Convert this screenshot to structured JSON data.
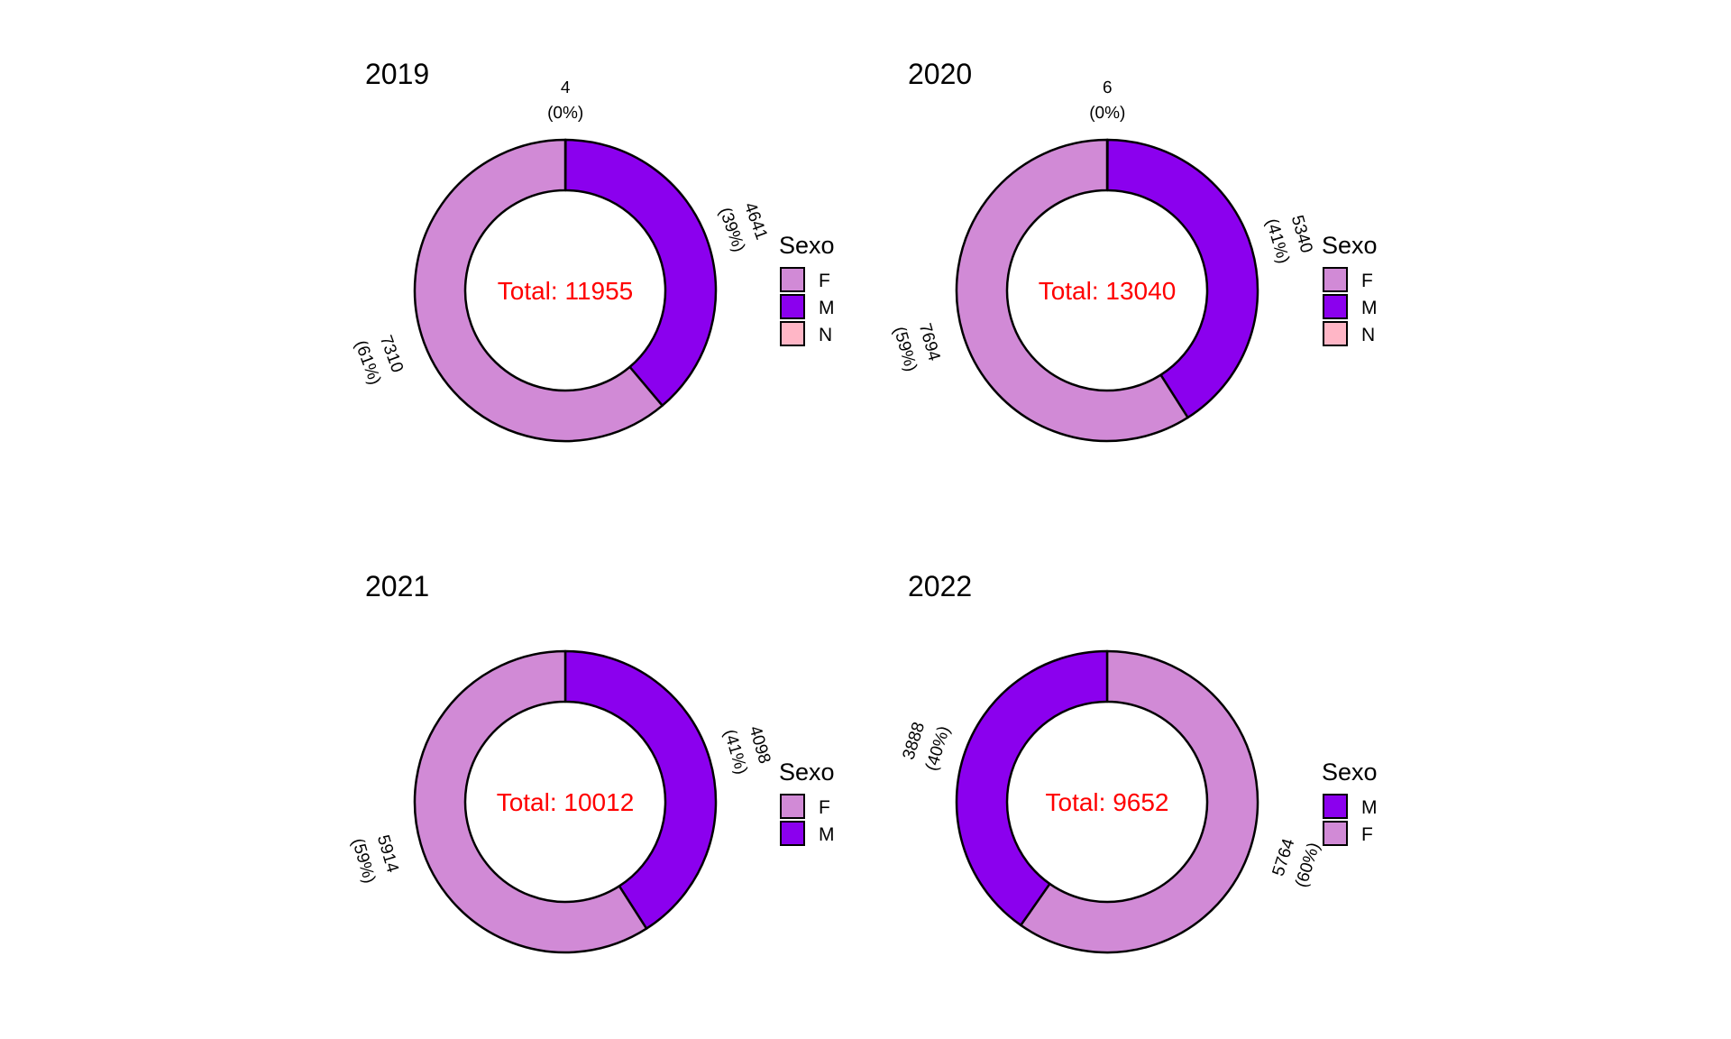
{
  "chart_data": [
    {
      "type": "pie",
      "title": "2019",
      "total_label": "Total: 11955",
      "slices": [
        {
          "category": "N",
          "value": 4,
          "label_value": "4",
          "label_pct": "(0%)"
        },
        {
          "category": "M",
          "value": 4641,
          "label_value": "4641",
          "label_pct": "(39%)"
        },
        {
          "category": "F",
          "value": 7310,
          "label_value": "7310",
          "label_pct": "(61%)"
        }
      ],
      "legend": {
        "title": "Sexo",
        "entries": [
          "F",
          "M",
          "N"
        ],
        "placement": "right"
      }
    },
    {
      "type": "pie",
      "title": "2020",
      "total_label": "Total: 13040",
      "slices": [
        {
          "category": "N",
          "value": 6,
          "label_value": "6",
          "label_pct": "(0%)"
        },
        {
          "category": "M",
          "value": 5340,
          "label_value": "5340",
          "label_pct": "(41%)"
        },
        {
          "category": "F",
          "value": 7694,
          "label_value": "7694",
          "label_pct": "(59%)"
        }
      ],
      "legend": {
        "title": "Sexo",
        "entries": [
          "F",
          "M",
          "N"
        ],
        "placement": "right"
      }
    },
    {
      "type": "pie",
      "title": "2021",
      "total_label": "Total: 10012",
      "slices": [
        {
          "category": "M",
          "value": 4098,
          "label_value": "4098",
          "label_pct": "(41%)"
        },
        {
          "category": "F",
          "value": 5914,
          "label_value": "5914",
          "label_pct": "(59%)"
        }
      ],
      "legend": {
        "title": "Sexo",
        "entries": [
          "F",
          "M"
        ],
        "placement": "right"
      }
    },
    {
      "type": "pie",
      "title": "2022",
      "total_label": "Total: 9652",
      "slices": [
        {
          "category": "F",
          "value": 5764,
          "label_value": "5764",
          "label_pct": "(60%)"
        },
        {
          "category": "M",
          "value": 3888,
          "label_value": "3888",
          "label_pct": "(40%)"
        }
      ],
      "legend": {
        "title": "Sexo",
        "entries": [
          "M",
          "F"
        ],
        "placement": "right"
      }
    }
  ],
  "colors": {
    "F": "#d18ad6",
    "M": "#8b00ee",
    "N": "#ffb6c6",
    "total_text": "#ff0000",
    "outline": "#000000"
  }
}
